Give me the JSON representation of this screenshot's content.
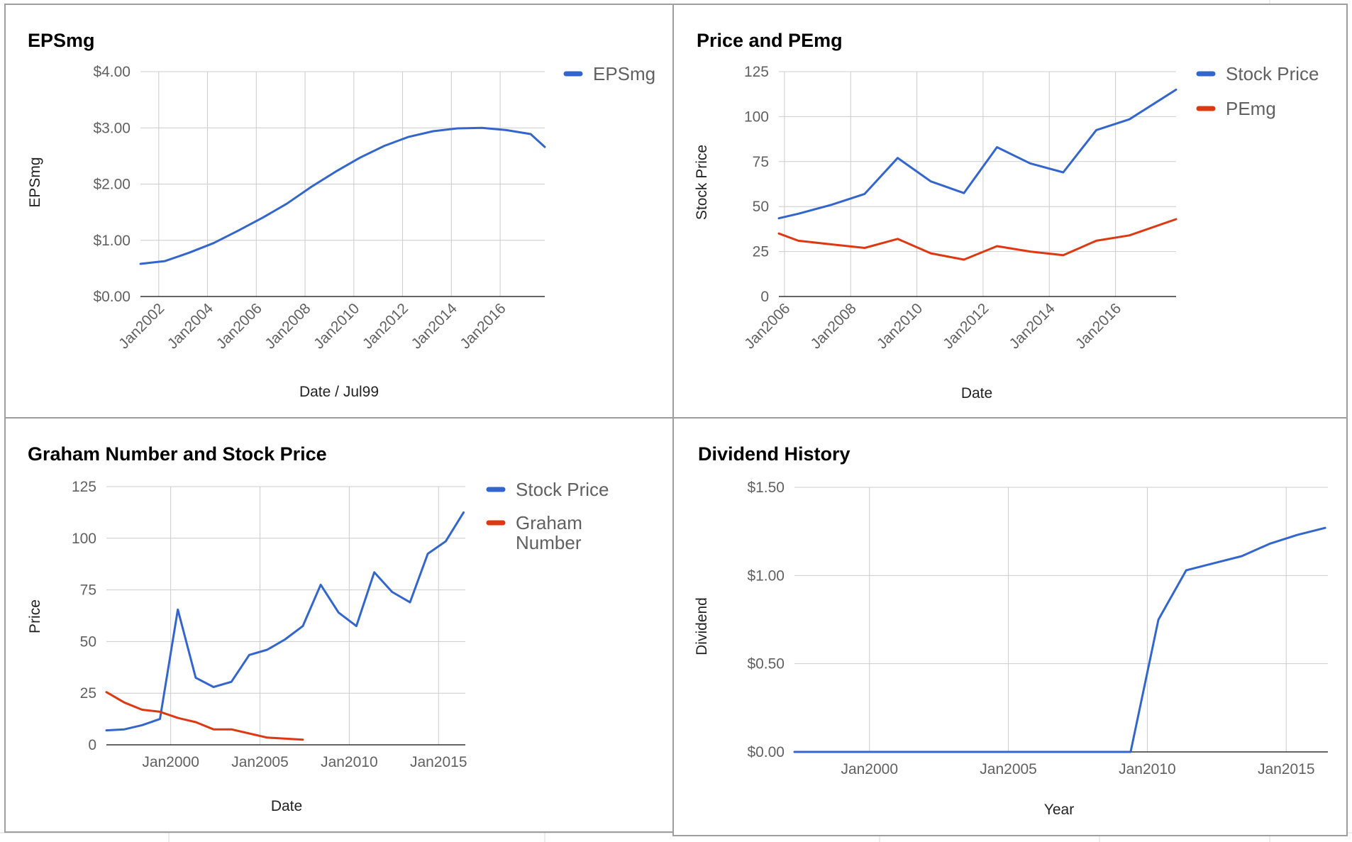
{
  "colors": {
    "blue": "#3366cc",
    "red": "#dc3912",
    "grid": "#cccccc",
    "axis": "#333333"
  },
  "charts": [
    {
      "type": "line",
      "title": "EPSmg",
      "xlabel": "Date / Jul99",
      "ylabel": "EPSmg",
      "ylim": [
        0,
        4
      ],
      "yticks": [
        "$0.00",
        "$1.00",
        "$2.00",
        "$3.00",
        "$4.00"
      ],
      "xlim": [
        2001.25,
        2017.83
      ],
      "xticks": [
        "Jan2002",
        "Jan2004",
        "Jan2006",
        "Jan2008",
        "Jan2010",
        "Jan2012",
        "Jan2014",
        "Jan2016"
      ],
      "xtick_values": [
        2002,
        2004,
        2006,
        2008,
        2010,
        2012,
        2014,
        2016
      ],
      "grid": true,
      "legend_position": "right",
      "series": [
        {
          "name": "EPSmg",
          "color": "#3366cc",
          "x": [
            2001.25,
            2001.65,
            2002.25,
            2003.25,
            2004.25,
            2005.25,
            2006.25,
            2007.25,
            2008.25,
            2009.25,
            2010.25,
            2011.25,
            2012.25,
            2013.25,
            2014.25,
            2015.25,
            2016.25,
            2017.25,
            2017.83
          ],
          "y": [
            0.58,
            0.6,
            0.63,
            0.78,
            0.95,
            1.17,
            1.4,
            1.65,
            1.95,
            2.22,
            2.47,
            2.68,
            2.84,
            2.94,
            2.99,
            3.0,
            2.96,
            2.89,
            2.66
          ]
        }
      ]
    },
    {
      "type": "line",
      "title": "Price and PEmg",
      "xlabel": "Date",
      "ylabel": "Stock Price",
      "ylim": [
        0,
        125
      ],
      "yticks": [
        "0",
        "25",
        "50",
        "75",
        "100",
        "125"
      ],
      "xlim": [
        2005.83,
        2017.83
      ],
      "xticks": [
        "Jan2006",
        "Jan2008",
        "Jan2010",
        "Jan2012",
        "Jan2014",
        "Jan2016"
      ],
      "xtick_values": [
        2006,
        2008,
        2010,
        2012,
        2014,
        2016
      ],
      "grid": true,
      "legend_position": "right",
      "series": [
        {
          "name": "Stock Price",
          "color": "#3366cc",
          "x": [
            2005.83,
            2006.42,
            2007.42,
            2008.42,
            2009.42,
            2010.42,
            2011.42,
            2012.42,
            2013.42,
            2014.42,
            2015.42,
            2016.42,
            2017.83
          ],
          "y": [
            43.5,
            46,
            51,
            57,
            77,
            64,
            57.5,
            83,
            74,
            69,
            92.5,
            98.5,
            115
          ]
        },
        {
          "name": "PEmg",
          "color": "#dc3912",
          "x": [
            2005.83,
            2006.42,
            2007.42,
            2008.42,
            2009.42,
            2010.42,
            2011.42,
            2012.42,
            2013.42,
            2014.42,
            2015.42,
            2016.42,
            2017.83
          ],
          "y": [
            35,
            31,
            29,
            27,
            32,
            24,
            20.5,
            28,
            25,
            23,
            31,
            34,
            43
          ]
        }
      ]
    },
    {
      "type": "line",
      "title": "Graham Number and Stock Price",
      "xlabel": "Date",
      "ylabel": "Price",
      "ylim": [
        0,
        125
      ],
      "yticks": [
        "0",
        "25",
        "50",
        "75",
        "100",
        "125"
      ],
      "xlim": [
        1996.4,
        2016.5
      ],
      "xticks": [
        "Jan2000",
        "Jan2005",
        "Jan2010",
        "Jan2015"
      ],
      "xtick_values": [
        2000,
        2005,
        2010,
        2015
      ],
      "grid": true,
      "legend_position": "right",
      "series": [
        {
          "name": "Stock Price",
          "color": "#3366cc",
          "x": [
            1996.4,
            1997.4,
            1998.4,
            1999.4,
            2000.4,
            2001.4,
            2002.4,
            2003.4,
            2004.4,
            2005.4,
            2006.4,
            2007.4,
            2008.4,
            2009.4,
            2010.4,
            2011.4,
            2012.4,
            2013.4,
            2014.4,
            2015.4,
            2016.4
          ],
          "y": [
            7,
            7.5,
            9.5,
            12.5,
            65.5,
            32.5,
            28,
            30.5,
            43.5,
            46,
            51,
            57.5,
            77.5,
            64,
            57.5,
            83.5,
            74,
            69,
            92.5,
            98.5,
            112.5
          ]
        },
        {
          "name": "Graham Number",
          "color": "#dc3912",
          "x": [
            1996.4,
            1997.4,
            1998.4,
            1999.4,
            2000.4,
            2001.4,
            2002.4,
            2003.4,
            2004.4,
            2005.4,
            2006.4,
            2007.4
          ],
          "y": [
            25.5,
            20.5,
            17,
            16,
            13,
            11,
            7.5,
            7.5,
            5.5,
            3.5,
            3,
            2.5
          ]
        }
      ]
    },
    {
      "type": "line",
      "title": "Dividend History",
      "xlabel": "Year",
      "ylabel": "Dividend",
      "ylim": [
        0,
        1.5
      ],
      "yticks": [
        "$0.00",
        "$0.50",
        "$1.00",
        "$1.50"
      ],
      "xlim": [
        1997.3,
        2016.5
      ],
      "xticks": [
        "Jan2000",
        "Jan2005",
        "Jan2010",
        "Jan2015"
      ],
      "xtick_values": [
        2000,
        2005,
        2010,
        2015
      ],
      "grid": true,
      "legend_position": "none",
      "series": [
        {
          "color": "#3366cc",
          "x": [
            1997.3,
            2009.4,
            2010.4,
            2011.4,
            2012.4,
            2013.4,
            2014.4,
            2015.4,
            2016.4
          ],
          "y": [
            0,
            0,
            0.75,
            1.03,
            1.07,
            1.11,
            1.18,
            1.23,
            1.27
          ]
        }
      ]
    }
  ]
}
